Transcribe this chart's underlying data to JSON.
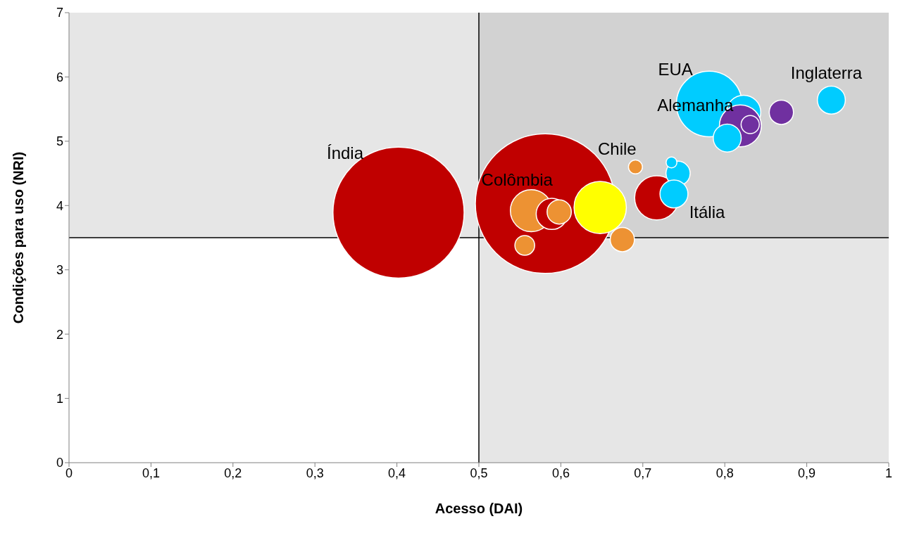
{
  "chart_data": {
    "type": "bubble",
    "xlabel": "Acesso (DAI)",
    "ylabel": "Condições para uso (NRI)",
    "xlim": [
      0,
      1
    ],
    "xticks": [
      0,
      {
        "value": 0.1,
        "label": "0,1"
      },
      {
        "value": 0.2,
        "label": "0,2"
      },
      {
        "value": 0.3,
        "label": "0,3"
      },
      {
        "value": 0.4,
        "label": "0,4"
      },
      {
        "value": 0.5,
        "label": "0,5"
      },
      {
        "value": 0.6,
        "label": "0,6"
      },
      {
        "value": 0.7,
        "label": "0,7"
      },
      {
        "value": 0.8,
        "label": "0,8"
      },
      {
        "value": 0.9,
        "label": "0,9"
      },
      1
    ],
    "ylim": [
      0,
      7
    ],
    "yticks": [
      0,
      1,
      2,
      3,
      4,
      5,
      6,
      7
    ],
    "grid": false,
    "legend": false,
    "bands": [
      {
        "axis": "x",
        "from": 0.5,
        "to": 1,
        "color": "#808080"
      },
      {
        "axis": "y",
        "from": 3.5,
        "to": 7,
        "color": "#808080"
      }
    ],
    "ref_lines": [
      {
        "axis": "x",
        "value": 0.5,
        "color": "#000000"
      },
      {
        "axis": "y",
        "value": 3.5,
        "color": "#000000"
      }
    ],
    "series": [
      {
        "color": "#c00000",
        "x": [
          0.402,
          0.581,
          0.717
        ],
        "values": [
          3.89,
          4.03,
          4.12
        ],
        "sizes": [
          0.88,
          1,
          0.1
        ]
      },
      {
        "color": "#ed9233",
        "x": [
          0.564,
          0.556,
          0.675,
          0.691
        ],
        "values": [
          3.92,
          3.38,
          3.47,
          4.6
        ],
        "sizes": [
          0.09,
          0.02,
          0.03,
          0.01
        ]
      },
      {
        "color": "#c00000",
        "x": [
          0.589
        ],
        "values": [
          3.87
        ],
        "sizes": [
          0.05
        ]
      },
      {
        "color": "#ed9233",
        "x": [
          0.598
        ],
        "values": [
          3.9
        ],
        "sizes": [
          0.03
        ]
      },
      {
        "color": "#ffff00",
        "x": [
          0.648
        ],
        "values": [
          3.97
        ],
        "sizes": [
          0.14
        ]
      },
      {
        "color": "#00ccff",
        "x": [
          0.781,
          0.823,
          0.93,
          0.743,
          0.735,
          0.738
        ],
        "values": [
          5.58,
          5.45,
          5.64,
          4.5,
          4.67,
          4.18
        ],
        "sizes": [
          0.22,
          0.06,
          0.04,
          0.03,
          0.006,
          0.04
        ]
      },
      {
        "color": "#7030a0",
        "x": [
          0.819,
          0.831,
          0.869
        ],
        "values": [
          5.24,
          5.26,
          5.45
        ],
        "sizes": [
          0.09,
          0.017,
          0.03
        ]
      },
      {
        "color": "#00ccff",
        "x": [
          0.803
        ],
        "values": [
          5.05
        ],
        "sizes": [
          0.04
        ]
      }
    ],
    "annotations": [
      "Índia",
      {
        "text": "Colômbia",
        "x": 0.581,
        "y": 4.03
      },
      {
        "text": "Chile",
        "x": 0.691,
        "y": 4.6
      },
      {
        "text": "Itália",
        "x": 0.738,
        "y": 4.18
      },
      {
        "text": "Alemanha",
        "x": 0.819,
        "y": 5.24
      },
      {
        "text": "EUA",
        "x": 0.781,
        "y": 5.58
      },
      {
        "text": "Inglaterra",
        "x": 0.93,
        "y": 5.64
      }
    ]
  }
}
